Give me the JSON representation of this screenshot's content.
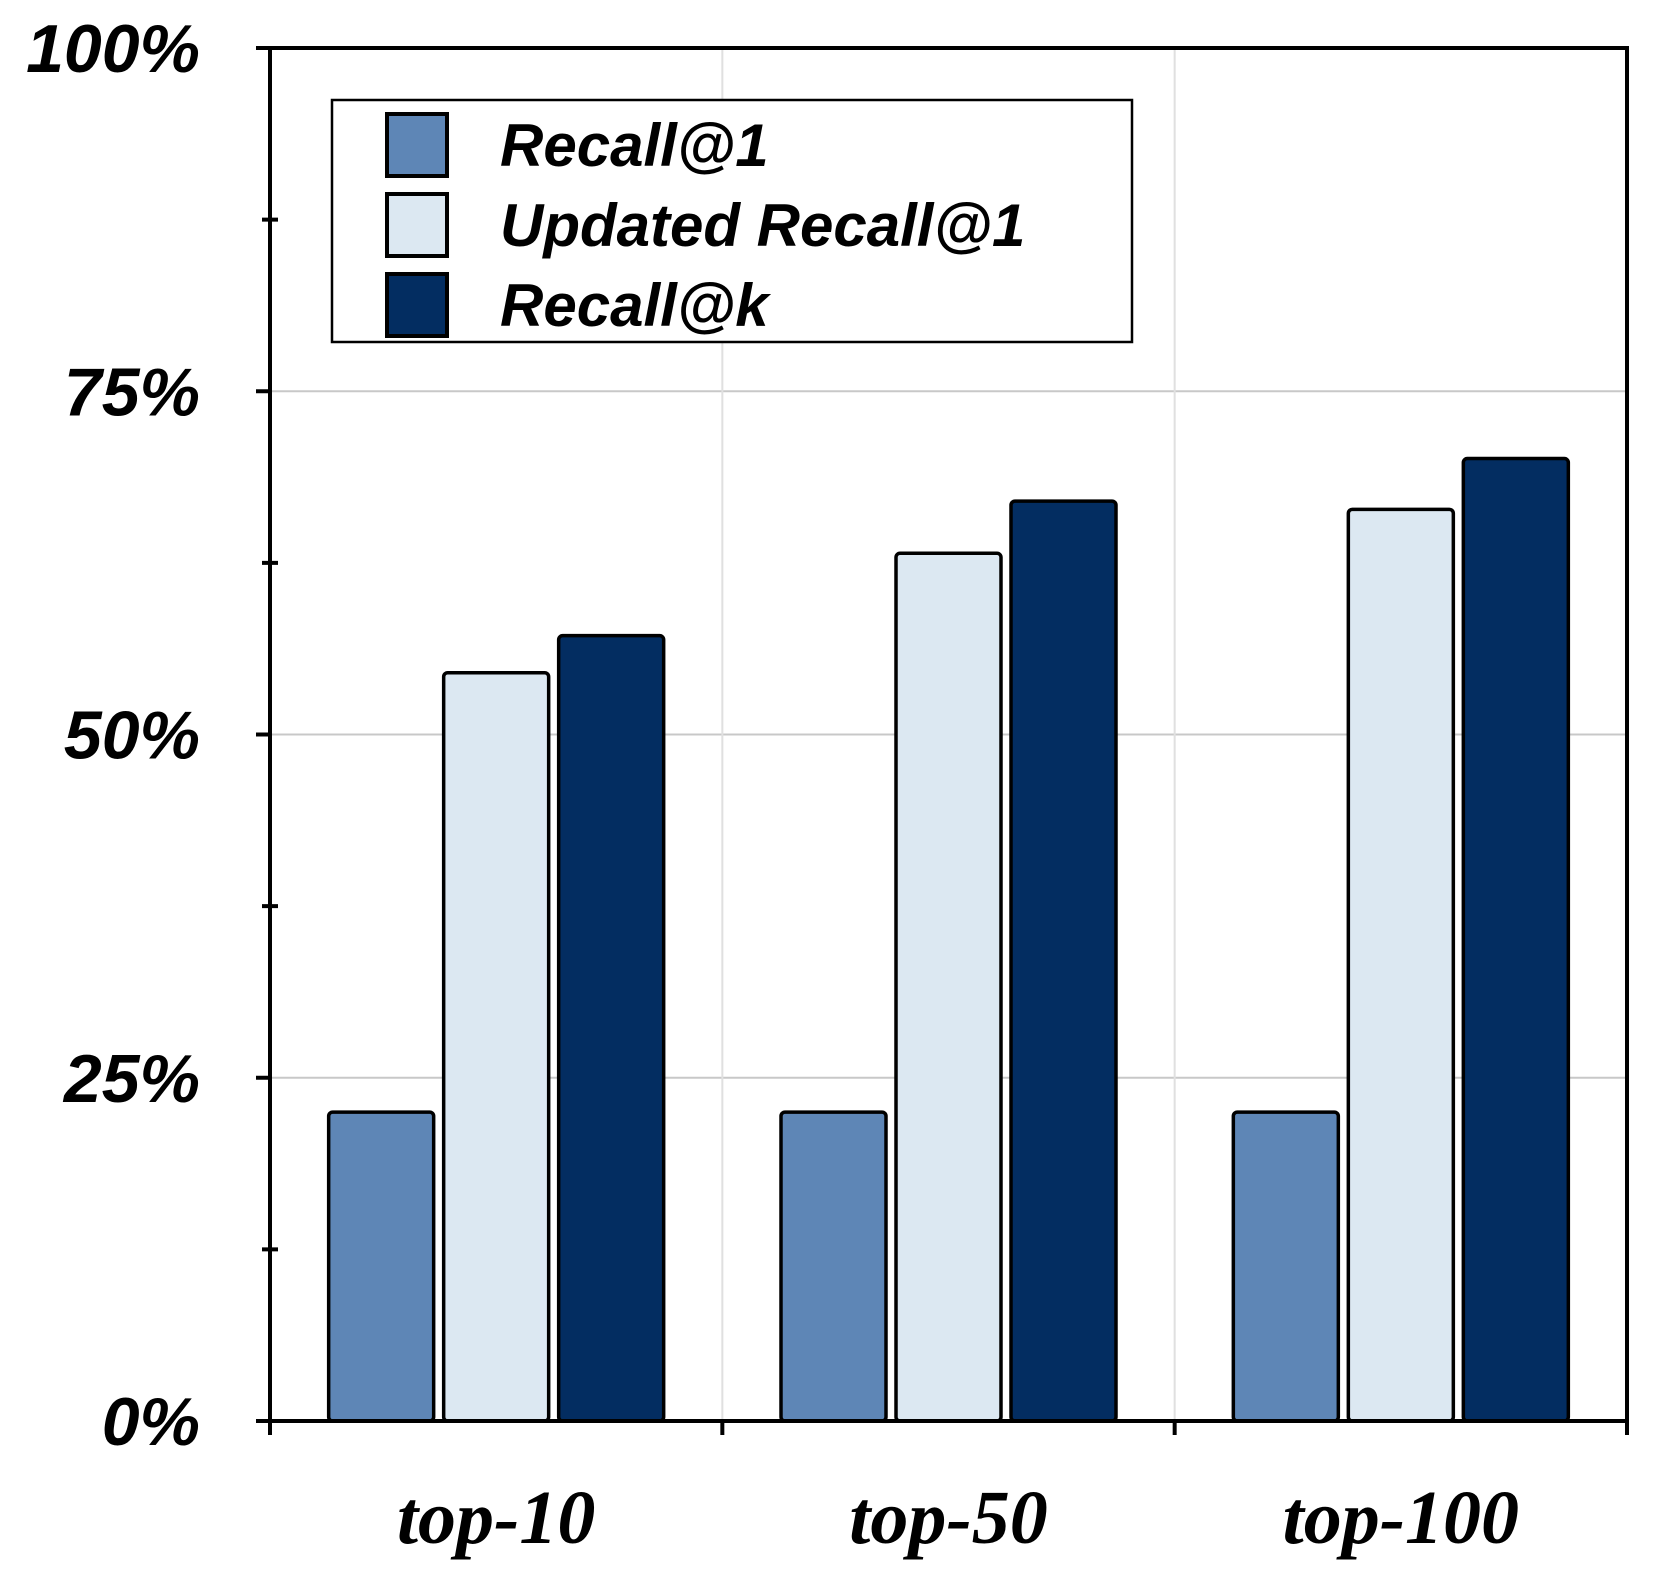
{
  "chart_data": {
    "type": "bar",
    "title": "",
    "xlabel": "",
    "ylabel": "",
    "categories": [
      "top-10",
      "top-50",
      "top-100"
    ],
    "series": [
      {
        "name": "Recall@1",
        "values": [
          22.5,
          22.5,
          22.5
        ],
        "color": "#5E86B6"
      },
      {
        "name": "Updated Recall@1",
        "values": [
          54.5,
          63.2,
          66.4
        ],
        "color": "#DCE8F2"
      },
      {
        "name": "Recall@k",
        "values": [
          57.2,
          67.0,
          70.1
        ],
        "color": "#032D61"
      }
    ],
    "ylim": [
      0,
      100
    ],
    "yticks": [
      0,
      25,
      50,
      75,
      100
    ],
    "ytick_labels": [
      "0%",
      "25%",
      "50%",
      "75%",
      "100%"
    ],
    "grid": true,
    "legend_position": "top-left"
  }
}
